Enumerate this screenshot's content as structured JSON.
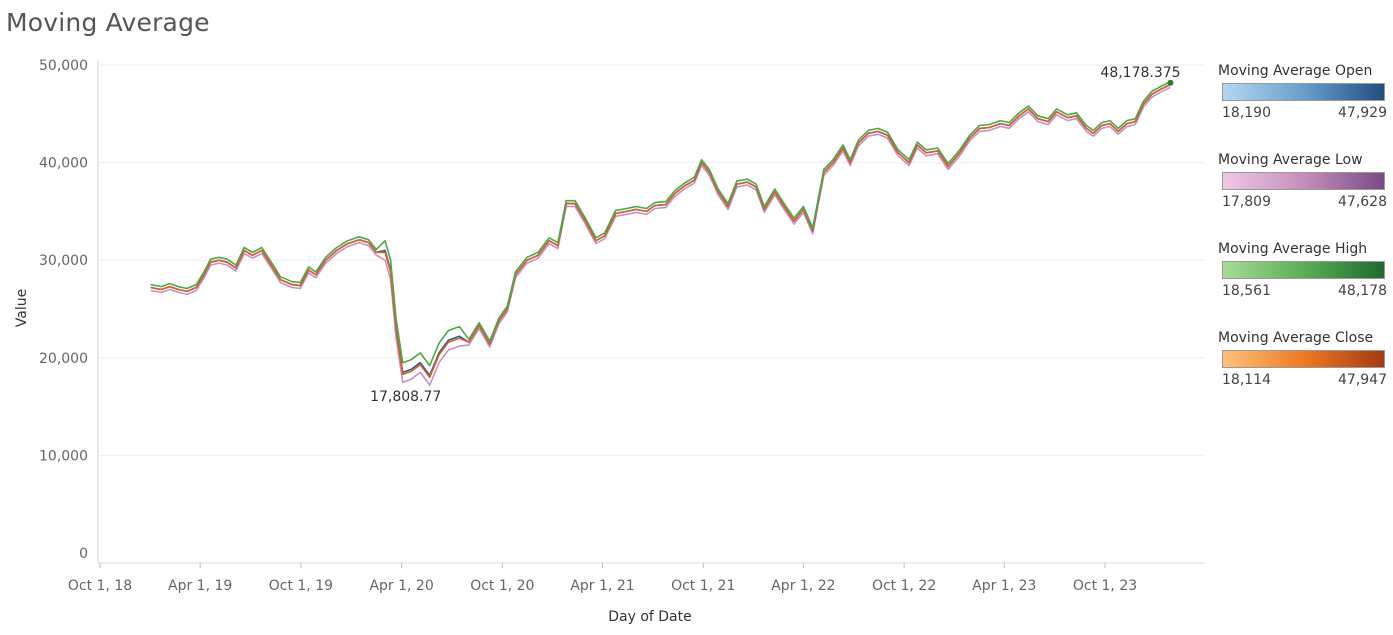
{
  "title": "Moving Average",
  "chart_data": {
    "type": "line",
    "title": "Moving Average",
    "xlabel": "Day of Date",
    "ylabel": "Value",
    "ylim": [
      0,
      50000
    ],
    "yticks": [
      "0",
      "10,000",
      "20,000",
      "30,000",
      "40,000",
      "50,000"
    ],
    "xticks": [
      {
        "date": "2018-10-01",
        "label": "Oct 1, 18"
      },
      {
        "date": "2019-04-01",
        "label": "Apr 1, 19"
      },
      {
        "date": "2019-10-01",
        "label": "Oct 1, 19"
      },
      {
        "date": "2020-04-01",
        "label": "Apr 1, 20"
      },
      {
        "date": "2020-10-01",
        "label": "Oct 1, 20"
      },
      {
        "date": "2021-04-01",
        "label": "Apr 1, 21"
      },
      {
        "date": "2021-10-01",
        "label": "Oct 1, 21"
      },
      {
        "date": "2022-04-01",
        "label": "Apr 1, 22"
      },
      {
        "date": "2022-10-01",
        "label": "Oct 1, 22"
      },
      {
        "date": "2023-04-01",
        "label": "Apr 1, 23"
      },
      {
        "date": "2023-10-01",
        "label": "Oct 1, 23"
      }
    ],
    "grid": true,
    "annotations": [
      {
        "text": "48,178.375",
        "date": "2024-01-28",
        "value": 48178.375,
        "series": "Moving Average High"
      },
      {
        "text": "17,808.77",
        "date": "2020-04-03",
        "value": 17808.77,
        "series": "Moving Average Low"
      }
    ],
    "base_series": [
      [
        "2019-01-01",
        27200
      ],
      [
        "2019-01-20",
        27000
      ],
      [
        "2019-02-05",
        27300
      ],
      [
        "2019-02-20",
        27000
      ],
      [
        "2019-03-08",
        26800
      ],
      [
        "2019-03-25",
        27200
      ],
      [
        "2019-04-08",
        28500
      ],
      [
        "2019-04-20",
        29800
      ],
      [
        "2019-05-05",
        30000
      ],
      [
        "2019-05-20",
        29800
      ],
      [
        "2019-06-05",
        29200
      ],
      [
        "2019-06-20",
        31000
      ],
      [
        "2019-07-05",
        30500
      ],
      [
        "2019-07-22",
        31000
      ],
      [
        "2019-08-08",
        29500
      ],
      [
        "2019-08-25",
        28000
      ],
      [
        "2019-09-15",
        27500
      ],
      [
        "2019-09-30",
        27400
      ],
      [
        "2019-10-15",
        29000
      ],
      [
        "2019-10-28",
        28500
      ],
      [
        "2019-11-15",
        30000
      ],
      [
        "2019-12-05",
        31000
      ],
      [
        "2019-12-25",
        31700
      ],
      [
        "2020-01-15",
        32100
      ],
      [
        "2020-02-01",
        31800
      ],
      [
        "2020-02-15",
        30800
      ],
      [
        "2020-03-02",
        31000
      ],
      [
        "2020-03-12",
        29000
      ],
      [
        "2020-03-22",
        23000
      ],
      [
        "2020-04-03",
        18500
      ],
      [
        "2020-04-18",
        18800
      ],
      [
        "2020-05-05",
        19500
      ],
      [
        "2020-05-22",
        18200
      ],
      [
        "2020-06-08",
        20500
      ],
      [
        "2020-06-25",
        21800
      ],
      [
        "2020-07-15",
        22200
      ],
      [
        "2020-08-01",
        21600
      ],
      [
        "2020-08-20",
        23300
      ],
      [
        "2020-09-08",
        21400
      ],
      [
        "2020-09-25",
        23800
      ],
      [
        "2020-10-10",
        25000
      ],
      [
        "2020-10-25",
        28500
      ],
      [
        "2020-11-15",
        30000
      ],
      [
        "2020-12-05",
        30500
      ],
      [
        "2020-12-25",
        32000
      ],
      [
        "2021-01-10",
        31500
      ],
      [
        "2021-01-25",
        35800
      ],
      [
        "2021-02-10",
        35800
      ],
      [
        "2021-03-01",
        34000
      ],
      [
        "2021-03-20",
        32000
      ],
      [
        "2021-04-05",
        32500
      ],
      [
        "2021-04-25",
        34800
      ],
      [
        "2021-05-15",
        35000
      ],
      [
        "2021-06-01",
        35200
      ],
      [
        "2021-06-20",
        35000
      ],
      [
        "2021-07-05",
        35600
      ],
      [
        "2021-07-25",
        35700
      ],
      [
        "2021-08-10",
        36800
      ],
      [
        "2021-08-28",
        37600
      ],
      [
        "2021-09-15",
        38200
      ],
      [
        "2021-09-28",
        40000
      ],
      [
        "2021-10-12",
        39000
      ],
      [
        "2021-10-28",
        37000
      ],
      [
        "2021-11-15",
        35500
      ],
      [
        "2021-12-01",
        37800
      ],
      [
        "2021-12-20",
        38000
      ],
      [
        "2022-01-05",
        37500
      ],
      [
        "2022-01-20",
        35200
      ],
      [
        "2022-02-08",
        37000
      ],
      [
        "2022-02-25",
        35500
      ],
      [
        "2022-03-15",
        34000
      ],
      [
        "2022-04-01",
        35200
      ],
      [
        "2022-04-18",
        33000
      ],
      [
        "2022-05-08",
        39000
      ],
      [
        "2022-05-25",
        40000
      ],
      [
        "2022-06-12",
        41500
      ],
      [
        "2022-06-25",
        40000
      ],
      [
        "2022-07-10",
        42000
      ],
      [
        "2022-07-28",
        43000
      ],
      [
        "2022-08-15",
        43200
      ],
      [
        "2022-09-01",
        42800
      ],
      [
        "2022-09-20",
        41000
      ],
      [
        "2022-10-10",
        40000
      ],
      [
        "2022-10-25",
        41800
      ],
      [
        "2022-11-10",
        41000
      ],
      [
        "2022-12-01",
        41200
      ],
      [
        "2022-12-20",
        39600
      ],
      [
        "2023-01-10",
        41000
      ],
      [
        "2023-01-28",
        42500
      ],
      [
        "2023-02-15",
        43500
      ],
      [
        "2023-03-05",
        43600
      ],
      [
        "2023-03-25",
        44000
      ],
      [
        "2023-04-10",
        43800
      ],
      [
        "2023-04-28",
        44800
      ],
      [
        "2023-05-15",
        45500
      ],
      [
        "2023-06-01",
        44500
      ],
      [
        "2023-06-20",
        44200
      ],
      [
        "2023-07-05",
        45200
      ],
      [
        "2023-07-25",
        44600
      ],
      [
        "2023-08-10",
        44800
      ],
      [
        "2023-08-28",
        43500
      ],
      [
        "2023-09-10",
        43000
      ],
      [
        "2023-09-25",
        43800
      ],
      [
        "2023-10-10",
        44000
      ],
      [
        "2023-10-25",
        43200
      ],
      [
        "2023-11-10",
        44000
      ],
      [
        "2023-11-25",
        44200
      ],
      [
        "2023-12-10",
        46000
      ],
      [
        "2023-12-25",
        47000
      ],
      [
        "2024-01-10",
        47500
      ],
      [
        "2024-01-28",
        48000
      ]
    ],
    "series": [
      {
        "name": "Moving Average Open",
        "color": "#2c5c8a",
        "min": "18,190",
        "max": "47,929"
      },
      {
        "name": "Moving Average Low",
        "color": "#c990c3",
        "min": "17,809",
        "max": "47,628"
      },
      {
        "name": "Moving Average High",
        "color": "#4aa84a",
        "min": "18,561",
        "max": "48,178"
      },
      {
        "name": "Moving Average Close",
        "color": "#d7612a",
        "min": "18,114",
        "max": "47,947"
      }
    ]
  },
  "legend": [
    {
      "title": "Moving Average Open",
      "min": "18,190",
      "max": "47,929",
      "gradient": [
        "#b3d6ef",
        "#6a9fcb",
        "#1f4e7f"
      ]
    },
    {
      "title": "Moving Average Low",
      "min": "17,809",
      "max": "47,628",
      "gradient": [
        "#f0c8e4",
        "#c48fbc",
        "#7a4a86"
      ]
    },
    {
      "title": "Moving Average High",
      "min": "18,561",
      "max": "48,178",
      "gradient": [
        "#a6dc96",
        "#5cae56",
        "#1e6a30"
      ]
    },
    {
      "title": "Moving Average Close",
      "min": "18,114",
      "max": "47,947",
      "gradient": [
        "#fdc27a",
        "#ee7a25",
        "#a23a14"
      ]
    }
  ]
}
